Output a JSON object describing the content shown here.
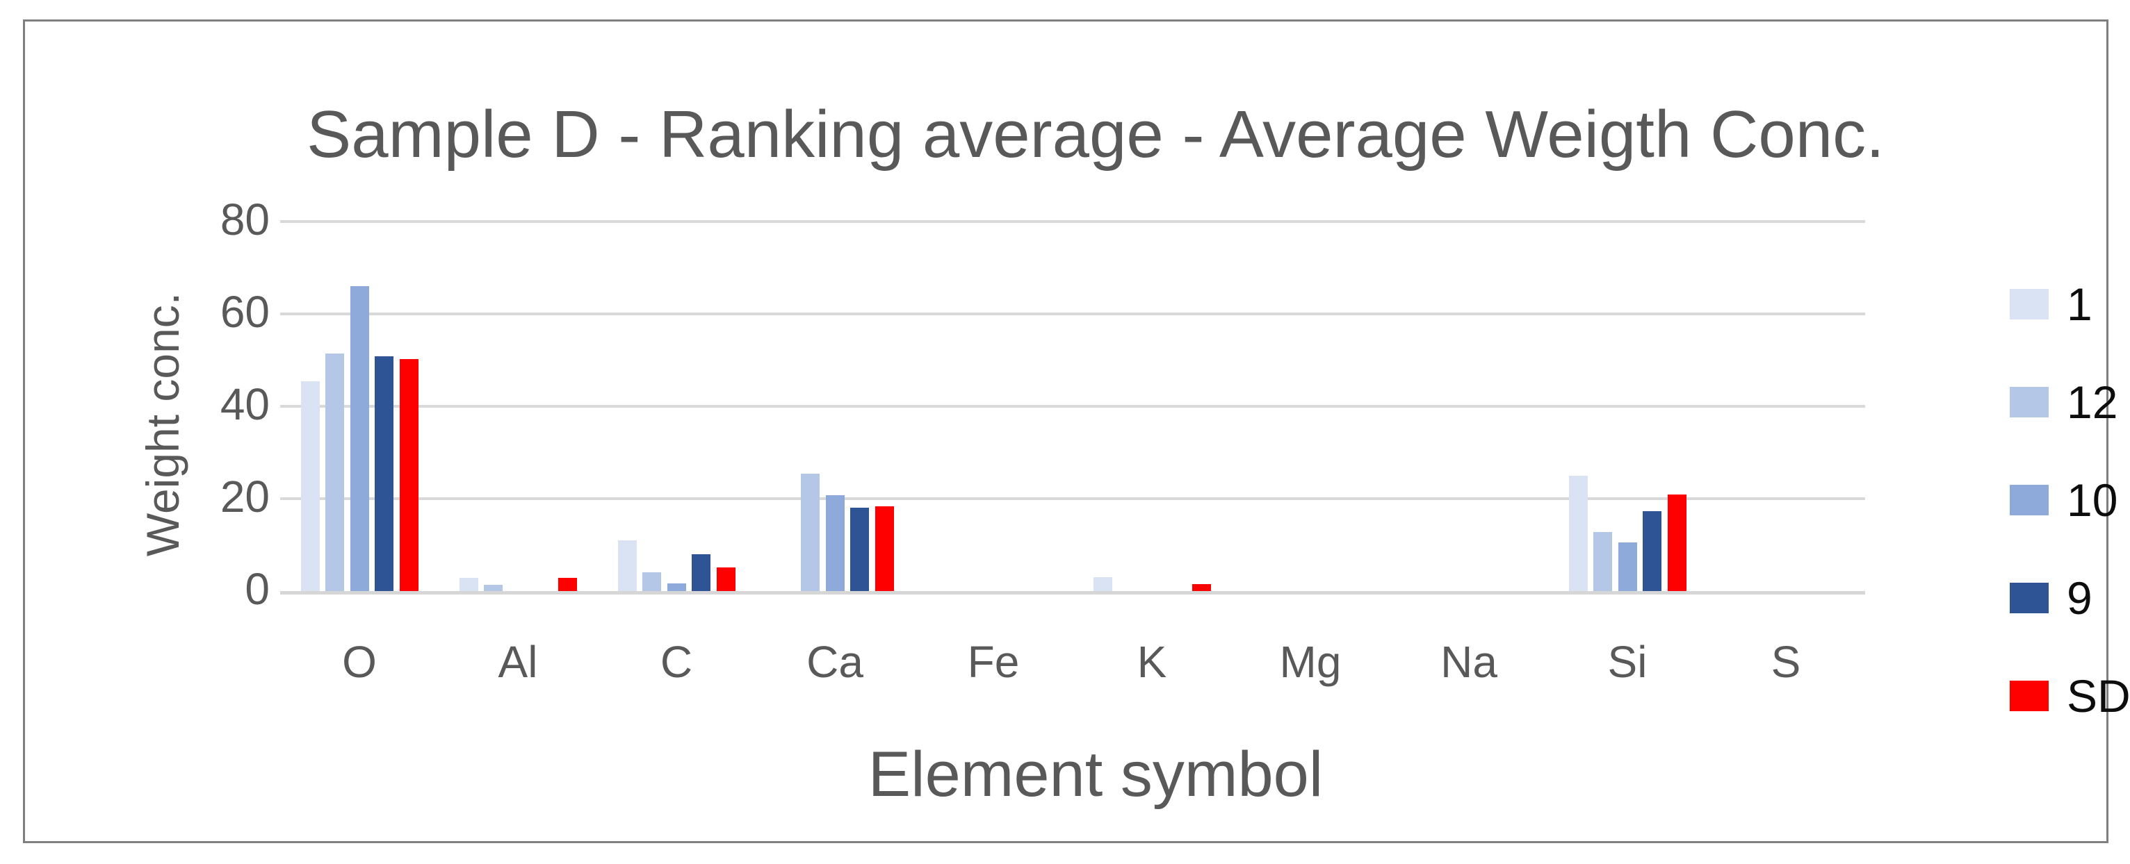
{
  "figure": {
    "background": "#ffffff",
    "border_color": "#7f7f7f"
  },
  "chart_data": {
    "type": "bar",
    "title": "Sample D - Ranking average - Average Weigth Conc.",
    "xlabel": "Element symbol",
    "ylabel": "Weight conc.",
    "categories": [
      "O",
      "Al",
      "C",
      "Ca",
      "Fe",
      "K",
      "Mg",
      "Na",
      "Si",
      "S"
    ],
    "series": [
      {
        "name": "1",
        "color": "#dae3f3",
        "values": [
          45.4,
          2.8,
          11.0,
          0,
          0,
          3.0,
          0,
          0,
          24.9,
          0
        ]
      },
      {
        "name": "12",
        "color": "#b4c7e7",
        "values": [
          51.4,
          1.4,
          4.0,
          25.4,
          0,
          0,
          0,
          0,
          12.8,
          0
        ]
      },
      {
        "name": "10",
        "color": "#8eaadb",
        "values": [
          66.0,
          0,
          1.7,
          20.7,
          0,
          0,
          0,
          0,
          10.6,
          0
        ]
      },
      {
        "name": "9",
        "color": "#2f5496",
        "values": [
          50.8,
          0,
          8.0,
          18.1,
          0,
          0,
          0,
          0,
          17.3,
          0
        ]
      },
      {
        "name": "SD",
        "color": "#ff0000",
        "values": [
          50.2,
          2.8,
          5.1,
          18.3,
          0,
          1.5,
          0,
          0,
          20.9,
          0
        ]
      }
    ],
    "yticks": [
      0,
      20,
      40,
      60,
      80
    ],
    "ylim": [
      0,
      80
    ],
    "grid": true,
    "gridline_color": "#d9d9d9",
    "axis_line_color": "#d6d6d6",
    "text_color": "#595959",
    "legend_text_color": "#0d0d0d",
    "legend_position": "right"
  }
}
